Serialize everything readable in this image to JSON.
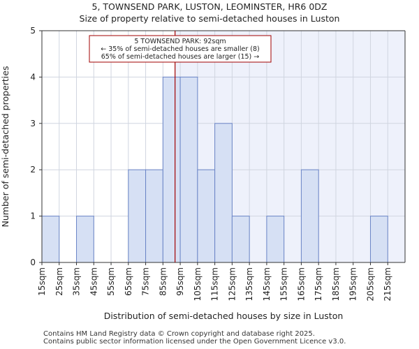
{
  "title_line1": "5, TOWNSEND PARK, LUSTON, LEOMINSTER, HR6 0DZ",
  "title_line2": "Size of property relative to semi-detached houses in Luston",
  "footer_line1": "Contains HM Land Registry data © Crown copyright and database right 2025.",
  "footer_line2": "Contains public sector information licensed under the Open Government Licence v3.0.",
  "colors": {
    "bar_fill": "#d6e0f4",
    "bar_stroke": "#6b85c7",
    "highlight_bg": "#eef1fb",
    "grid": "#d0d5e0",
    "marker_line": "#a00000",
    "annotation_border": "#a00000"
  },
  "chart_data": {
    "type": "bar",
    "title": "Size of property relative to semi-detached houses in Luston",
    "xlabel": "Distribution of semi-detached houses by size in Luston",
    "ylabel": "Number of semi-detached properties",
    "categories": [
      "15sqm",
      "25sqm",
      "35sqm",
      "45sqm",
      "55sqm",
      "65sqm",
      "75sqm",
      "85sqm",
      "95sqm",
      "105sqm",
      "115sqm",
      "125sqm",
      "135sqm",
      "145sqm",
      "155sqm",
      "165sqm",
      "175sqm",
      "185sqm",
      "195sqm",
      "205sqm",
      "215sqm"
    ],
    "bin_edges": [
      15,
      25,
      35,
      45,
      55,
      65,
      75,
      85,
      95,
      105,
      115,
      125,
      135,
      145,
      155,
      165,
      175,
      185,
      195,
      205,
      215,
      225
    ],
    "values": [
      1,
      0,
      1,
      0,
      0,
      2,
      2,
      4,
      4,
      2,
      3,
      1,
      0,
      1,
      0,
      2,
      0,
      0,
      0,
      1,
      0
    ],
    "ylim": [
      0,
      5
    ],
    "yticks": [
      0,
      1,
      2,
      3,
      4,
      5
    ],
    "grid": true,
    "marker": {
      "value": 92,
      "label_title": "5 TOWNSEND PARK: 92sqm",
      "label_smaller": "← 35% of semi-detached houses are smaller (8)",
      "label_larger": "65% of semi-detached houses are larger (15) →"
    }
  }
}
